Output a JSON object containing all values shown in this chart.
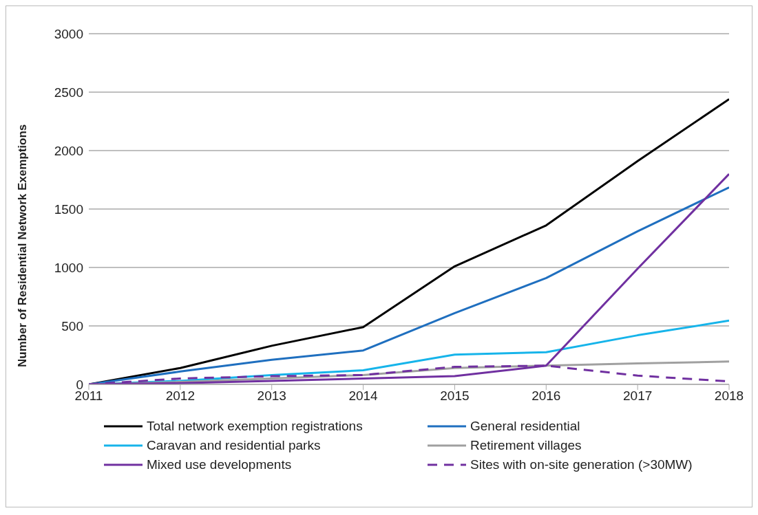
{
  "chart_data": {
    "type": "line",
    "ylabel": "Number of Residential Network Exemptions",
    "x": [
      2011,
      2012,
      2013,
      2014,
      2015,
      2016,
      2017,
      2018
    ],
    "xlim": [
      2011,
      2018
    ],
    "xticks": [
      2011,
      2012,
      2013,
      2014,
      2015,
      2016,
      2017,
      2018
    ],
    "ylim": [
      0,
      3000
    ],
    "yticks": [
      0,
      500,
      1000,
      1500,
      2000,
      2500,
      3000
    ],
    "grid": "y",
    "legend": "bottom",
    "marker": "none",
    "series": [
      {
        "name": "Total network exemption registrations",
        "color": "#000000",
        "values": [
          0,
          140,
          330,
          490,
          1010,
          1360,
          1910,
          2440
        ]
      },
      {
        "name": "General residential",
        "color": "#1f6fbf",
        "values": [
          0,
          110,
          210,
          290,
          610,
          910,
          1310,
          1685
        ]
      },
      {
        "name": "Caravan and residential parks",
        "color": "#16b4ea",
        "values": [
          0,
          30,
          80,
          120,
          255,
          275,
          420,
          545
        ]
      },
      {
        "name": "Retirement villages",
        "color": "#a0a0a0",
        "values": [
          0,
          20,
          50,
          80,
          140,
          160,
          180,
          195
        ]
      },
      {
        "name": "Mixed use developments",
        "color": "#7030a0",
        "values": [
          0,
          10,
          30,
          50,
          70,
          160,
          990,
          1800
        ]
      },
      {
        "name": "Sites with on-site generation (>30MW)",
        "color": "#7030a0",
        "line_style": "dashed",
        "values": [
          0,
          50,
          70,
          80,
          150,
          160,
          75,
          25
        ]
      }
    ]
  }
}
